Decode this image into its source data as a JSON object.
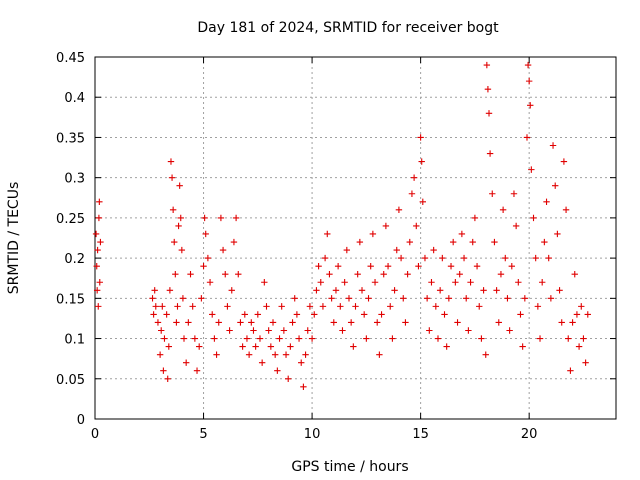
{
  "chart_data": {
    "type": "scatter",
    "title": "Day 181 of 2024, SRMTID for receiver bogt",
    "xlabel": "GPS time / hours",
    "ylabel": "SRMTID / TECUs",
    "xlim": [
      0,
      24
    ],
    "ylim": [
      0,
      0.45
    ],
    "grid": true,
    "marker": "+",
    "xticks": [
      0,
      5,
      10,
      15,
      20
    ],
    "yticks": [
      0,
      0.05,
      0.1,
      0.15,
      0.2,
      0.25,
      0.3,
      0.35,
      0.4,
      0.45
    ],
    "series": [
      {
        "name": "SRMTID",
        "color": "#e00000",
        "points": [
          [
            0.05,
            0.23
          ],
          [
            0.08,
            0.19
          ],
          [
            0.1,
            0.16
          ],
          [
            0.12,
            0.21
          ],
          [
            0.15,
            0.14
          ],
          [
            0.18,
            0.25
          ],
          [
            0.2,
            0.27
          ],
          [
            0.22,
            0.17
          ],
          [
            0.25,
            0.22
          ],
          [
            2.65,
            0.15
          ],
          [
            2.7,
            0.13
          ],
          [
            2.75,
            0.16
          ],
          [
            2.8,
            0.14
          ],
          [
            2.9,
            0.12
          ],
          [
            3.0,
            0.08
          ],
          [
            3.05,
            0.11
          ],
          [
            3.1,
            0.14
          ],
          [
            3.15,
            0.06
          ],
          [
            3.2,
            0.1
          ],
          [
            3.3,
            0.13
          ],
          [
            3.35,
            0.05
          ],
          [
            3.4,
            0.09
          ],
          [
            3.45,
            0.16
          ],
          [
            3.5,
            0.32
          ],
          [
            3.55,
            0.3
          ],
          [
            3.6,
            0.26
          ],
          [
            3.65,
            0.22
          ],
          [
            3.7,
            0.18
          ],
          [
            3.75,
            0.12
          ],
          [
            3.8,
            0.14
          ],
          [
            3.85,
            0.24
          ],
          [
            3.9,
            0.29
          ],
          [
            3.95,
            0.25
          ],
          [
            4.0,
            0.21
          ],
          [
            4.05,
            0.15
          ],
          [
            4.1,
            0.1
          ],
          [
            4.2,
            0.07
          ],
          [
            4.3,
            0.12
          ],
          [
            4.4,
            0.18
          ],
          [
            4.5,
            0.14
          ],
          [
            4.6,
            0.1
          ],
          [
            4.7,
            0.06
          ],
          [
            4.8,
            0.09
          ],
          [
            4.9,
            0.15
          ],
          [
            5.0,
            0.19
          ],
          [
            5.05,
            0.25
          ],
          [
            5.1,
            0.23
          ],
          [
            5.2,
            0.2
          ],
          [
            5.3,
            0.17
          ],
          [
            5.4,
            0.13
          ],
          [
            5.5,
            0.1
          ],
          [
            5.6,
            0.08
          ],
          [
            5.7,
            0.12
          ],
          [
            5.8,
            0.25
          ],
          [
            5.9,
            0.21
          ],
          [
            6.0,
            0.18
          ],
          [
            6.1,
            0.14
          ],
          [
            6.2,
            0.11
          ],
          [
            6.3,
            0.16
          ],
          [
            6.4,
            0.22
          ],
          [
            6.5,
            0.25
          ],
          [
            6.6,
            0.18
          ],
          [
            6.7,
            0.12
          ],
          [
            6.8,
            0.09
          ],
          [
            6.9,
            0.13
          ],
          [
            7.0,
            0.1
          ],
          [
            7.1,
            0.08
          ],
          [
            7.2,
            0.12
          ],
          [
            7.3,
            0.11
          ],
          [
            7.4,
            0.09
          ],
          [
            7.5,
            0.13
          ],
          [
            7.6,
            0.1
          ],
          [
            7.7,
            0.07
          ],
          [
            7.8,
            0.17
          ],
          [
            7.9,
            0.14
          ],
          [
            8.0,
            0.11
          ],
          [
            8.1,
            0.09
          ],
          [
            8.2,
            0.12
          ],
          [
            8.3,
            0.08
          ],
          [
            8.4,
            0.06
          ],
          [
            8.5,
            0.1
          ],
          [
            8.6,
            0.14
          ],
          [
            8.7,
            0.11
          ],
          [
            8.8,
            0.08
          ],
          [
            8.9,
            0.05
          ],
          [
            9.0,
            0.09
          ],
          [
            9.1,
            0.12
          ],
          [
            9.2,
            0.15
          ],
          [
            9.3,
            0.13
          ],
          [
            9.4,
            0.1
          ],
          [
            9.5,
            0.07
          ],
          [
            9.6,
            0.04
          ],
          [
            9.7,
            0.08
          ],
          [
            9.8,
            0.11
          ],
          [
            9.9,
            0.14
          ],
          [
            10.0,
            0.1
          ],
          [
            10.1,
            0.13
          ],
          [
            10.2,
            0.16
          ],
          [
            10.3,
            0.19
          ],
          [
            10.4,
            0.17
          ],
          [
            10.5,
            0.14
          ],
          [
            10.6,
            0.2
          ],
          [
            10.7,
            0.23
          ],
          [
            10.8,
            0.18
          ],
          [
            10.9,
            0.15
          ],
          [
            11.0,
            0.12
          ],
          [
            11.1,
            0.16
          ],
          [
            11.2,
            0.19
          ],
          [
            11.3,
            0.14
          ],
          [
            11.4,
            0.11
          ],
          [
            11.5,
            0.17
          ],
          [
            11.6,
            0.21
          ],
          [
            11.7,
            0.15
          ],
          [
            11.8,
            0.12
          ],
          [
            11.9,
            0.09
          ],
          [
            12.0,
            0.14
          ],
          [
            12.1,
            0.18
          ],
          [
            12.2,
            0.22
          ],
          [
            12.3,
            0.16
          ],
          [
            12.4,
            0.13
          ],
          [
            12.5,
            0.1
          ],
          [
            12.6,
            0.15
          ],
          [
            12.7,
            0.19
          ],
          [
            12.8,
            0.23
          ],
          [
            12.9,
            0.17
          ],
          [
            13.0,
            0.12
          ],
          [
            13.1,
            0.08
          ],
          [
            13.2,
            0.13
          ],
          [
            13.3,
            0.18
          ],
          [
            13.4,
            0.24
          ],
          [
            13.5,
            0.19
          ],
          [
            13.6,
            0.14
          ],
          [
            13.7,
            0.1
          ],
          [
            13.8,
            0.16
          ],
          [
            13.9,
            0.21
          ],
          [
            14.0,
            0.26
          ],
          [
            14.1,
            0.2
          ],
          [
            14.2,
            0.15
          ],
          [
            14.3,
            0.12
          ],
          [
            14.4,
            0.18
          ],
          [
            14.5,
            0.22
          ],
          [
            14.6,
            0.28
          ],
          [
            14.7,
            0.3
          ],
          [
            14.8,
            0.24
          ],
          [
            14.9,
            0.19
          ],
          [
            15.0,
            0.35
          ],
          [
            15.05,
            0.32
          ],
          [
            15.1,
            0.27
          ],
          [
            15.2,
            0.2
          ],
          [
            15.3,
            0.15
          ],
          [
            15.4,
            0.11
          ],
          [
            15.5,
            0.17
          ],
          [
            15.6,
            0.21
          ],
          [
            15.7,
            0.14
          ],
          [
            15.8,
            0.1
          ],
          [
            15.9,
            0.16
          ],
          [
            16.0,
            0.2
          ],
          [
            16.1,
            0.13
          ],
          [
            16.2,
            0.09
          ],
          [
            16.3,
            0.15
          ],
          [
            16.4,
            0.19
          ],
          [
            16.5,
            0.22
          ],
          [
            16.6,
            0.17
          ],
          [
            16.7,
            0.12
          ],
          [
            16.8,
            0.18
          ],
          [
            16.9,
            0.23
          ],
          [
            17.0,
            0.2
          ],
          [
            17.1,
            0.15
          ],
          [
            17.2,
            0.11
          ],
          [
            17.3,
            0.17
          ],
          [
            17.4,
            0.22
          ],
          [
            17.5,
            0.25
          ],
          [
            17.6,
            0.19
          ],
          [
            17.7,
            0.14
          ],
          [
            17.8,
            0.1
          ],
          [
            17.9,
            0.16
          ],
          [
            18.0,
            0.08
          ],
          [
            18.05,
            0.44
          ],
          [
            18.1,
            0.41
          ],
          [
            18.15,
            0.38
          ],
          [
            18.2,
            0.33
          ],
          [
            18.3,
            0.28
          ],
          [
            18.4,
            0.22
          ],
          [
            18.5,
            0.16
          ],
          [
            18.6,
            0.12
          ],
          [
            18.7,
            0.18
          ],
          [
            18.8,
            0.26
          ],
          [
            18.9,
            0.2
          ],
          [
            19.0,
            0.15
          ],
          [
            19.1,
            0.11
          ],
          [
            19.2,
            0.19
          ],
          [
            19.3,
            0.28
          ],
          [
            19.4,
            0.24
          ],
          [
            19.5,
            0.17
          ],
          [
            19.6,
            0.13
          ],
          [
            19.7,
            0.09
          ],
          [
            19.8,
            0.15
          ],
          [
            19.9,
            0.35
          ],
          [
            19.95,
            0.44
          ],
          [
            20.0,
            0.42
          ],
          [
            20.05,
            0.39
          ],
          [
            20.1,
            0.31
          ],
          [
            20.2,
            0.25
          ],
          [
            20.3,
            0.2
          ],
          [
            20.4,
            0.14
          ],
          [
            20.5,
            0.1
          ],
          [
            20.6,
            0.17
          ],
          [
            20.7,
            0.22
          ],
          [
            20.8,
            0.27
          ],
          [
            20.9,
            0.2
          ],
          [
            21.0,
            0.15
          ],
          [
            21.1,
            0.34
          ],
          [
            21.2,
            0.29
          ],
          [
            21.3,
            0.23
          ],
          [
            21.4,
            0.16
          ],
          [
            21.5,
            0.12
          ],
          [
            21.6,
            0.32
          ],
          [
            21.7,
            0.26
          ],
          [
            21.8,
            0.1
          ],
          [
            21.9,
            0.06
          ],
          [
            22.0,
            0.12
          ],
          [
            22.1,
            0.18
          ],
          [
            22.2,
            0.13
          ],
          [
            22.3,
            0.09
          ],
          [
            22.4,
            0.14
          ],
          [
            22.5,
            0.1
          ],
          [
            22.6,
            0.07
          ],
          [
            22.7,
            0.13
          ]
        ]
      }
    ]
  }
}
